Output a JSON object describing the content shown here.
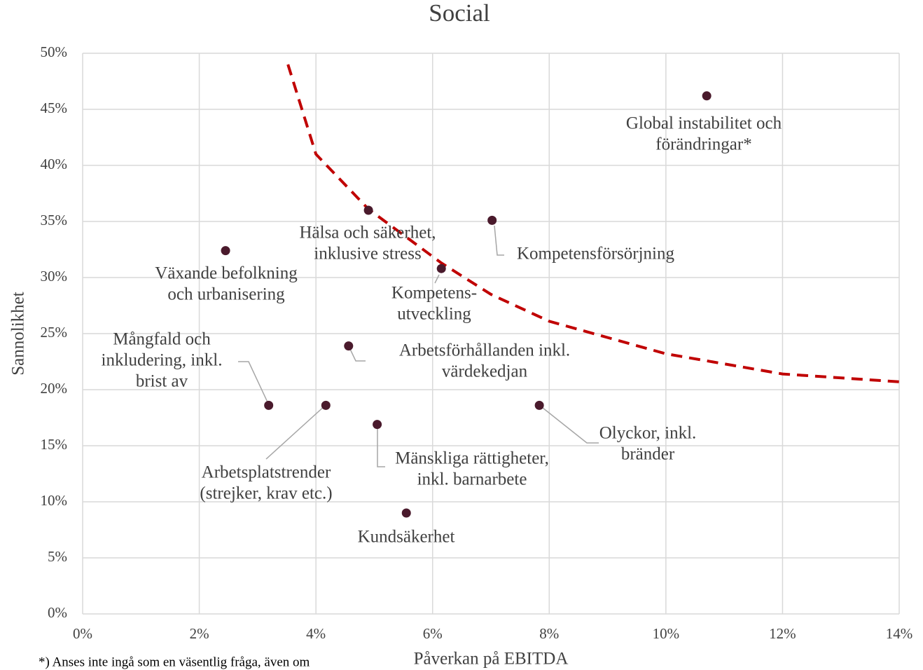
{
  "chart_data": {
    "type": "scatter",
    "title": "Social",
    "xlabel": "Påverkan på EBITDA",
    "ylabel": "Sannolikhet",
    "footnote": "*) Anses inte ingå som en väsentlig fråga, även om",
    "x": [
      10.7,
      4.9,
      7.02,
      2.45,
      6.15,
      4.56,
      3.19,
      4.17,
      5.05,
      7.83,
      5.55
    ],
    "y": [
      46.2,
      36.0,
      35.1,
      32.4,
      30.8,
      23.9,
      18.6,
      18.6,
      16.9,
      18.6,
      9.0
    ],
    "labels": [
      [
        "Global instabilitet och",
        "förändringar*"
      ],
      [
        "Hälsa och säkerhet,",
        "inklusive stress"
      ],
      [
        "Kompetensförsörjning"
      ],
      [
        "Växande befolkning",
        "och urbanisering"
      ],
      [
        "Kompetens-",
        "utveckling"
      ],
      [
        "Arbetsförhållanden inkl.",
        "värdekedjan"
      ],
      [
        "Mångfald och",
        "inkludering, inkl.",
        "brist av"
      ],
      [
        "Arbetsplatstrender",
        "(strejker, krav etc.)"
      ],
      [
        "Mänskliga rättigheter,",
        "inkl. barnarbete"
      ],
      [
        "Olyckor, inkl.",
        "bränder"
      ],
      [
        "Kundsäkerhet"
      ]
    ],
    "color": "#4a1a2c",
    "curve": {
      "x": [
        3.52,
        4.0,
        4.9,
        6.15,
        7.0,
        8.0,
        10.0,
        12.0,
        14.0
      ],
      "y": [
        49.0,
        41.0,
        36.1,
        31.3,
        28.5,
        26.1,
        23.2,
        21.4,
        20.7
      ],
      "color": "#c00000",
      "dashed": true
    },
    "xlim": [
      0,
      14
    ],
    "ylim": [
      0,
      50
    ],
    "xticks": [
      {
        "value": 0,
        "label": "0%"
      },
      {
        "value": 2,
        "label": "2%"
      },
      {
        "value": 4,
        "label": "4%"
      },
      {
        "value": 6,
        "label": "6%"
      },
      {
        "value": 8,
        "label": "8%"
      },
      {
        "value": 10,
        "label": "10%"
      },
      {
        "value": 12,
        "label": "12%"
      },
      {
        "value": 14,
        "label": "14%"
      }
    ],
    "yticks": [
      {
        "value": 0,
        "label": "0%"
      },
      {
        "value": 5,
        "label": "5%"
      },
      {
        "value": 10,
        "label": "10%"
      },
      {
        "value": 15,
        "label": "15%"
      },
      {
        "value": 20,
        "label": "20%"
      },
      {
        "value": 25,
        "label": "25%"
      },
      {
        "value": 30,
        "label": "30%"
      },
      {
        "value": 35,
        "label": "35%"
      },
      {
        "value": 40,
        "label": "40%"
      },
      {
        "value": 45,
        "label": "45%"
      },
      {
        "value": 50,
        "label": "50%"
      }
    ],
    "grid": true
  }
}
